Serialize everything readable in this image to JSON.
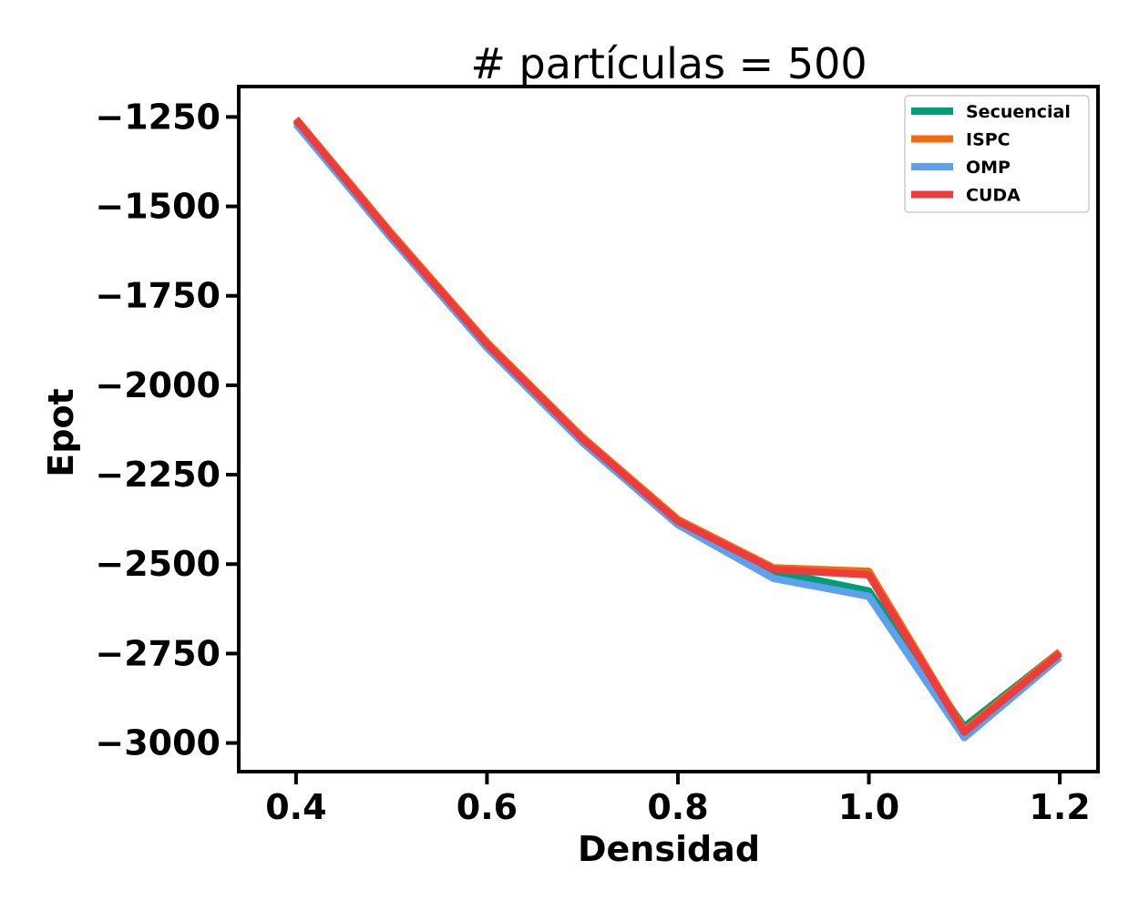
{
  "chart_data": {
    "type": "line",
    "title": "# partículas = 500",
    "xlabel": "Densidad",
    "ylabel": "Epot",
    "xlim": [
      0.34,
      1.24
    ],
    "ylim": [
      -3080,
      -1165
    ],
    "x_ticks": [
      0.4,
      0.6,
      0.8,
      1.0,
      1.2
    ],
    "x_tick_labels": [
      "0.4",
      "0.6",
      "0.8",
      "1.0",
      "1.2"
    ],
    "y_ticks": [
      -1250,
      -1500,
      -1750,
      -2000,
      -2250,
      -2500,
      -2750,
      -3000
    ],
    "y_tick_labels": [
      "−1250",
      "−1500",
      "−1750",
      "−2000",
      "−2250",
      "−2500",
      "−2750",
      "−3000"
    ],
    "grid": false,
    "legend_position": "top-right",
    "x": [
      0.4,
      0.5,
      0.6,
      0.7,
      0.8,
      0.9,
      1.0,
      1.1,
      1.2
    ],
    "series": [
      {
        "name": "Secuencial",
        "color": "#009e73",
        "values": [
          -1262,
          -1580,
          -1885,
          -2150,
          -2380,
          -2520,
          -2575,
          -2955,
          -2745
        ]
      },
      {
        "name": "ISPC",
        "color": "#f26b0f",
        "values": [
          -1255,
          -1575,
          -1880,
          -2145,
          -2375,
          -2510,
          -2520,
          -2965,
          -2745
        ]
      },
      {
        "name": "OMP",
        "color": "#5ca0ee",
        "values": [
          -1270,
          -1590,
          -1895,
          -2160,
          -2390,
          -2540,
          -2590,
          -2985,
          -2760
        ]
      },
      {
        "name": "CUDA",
        "color": "#ee3b3b",
        "values": [
          -1258,
          -1580,
          -1885,
          -2150,
          -2380,
          -2515,
          -2530,
          -2970,
          -2750
        ]
      }
    ]
  }
}
